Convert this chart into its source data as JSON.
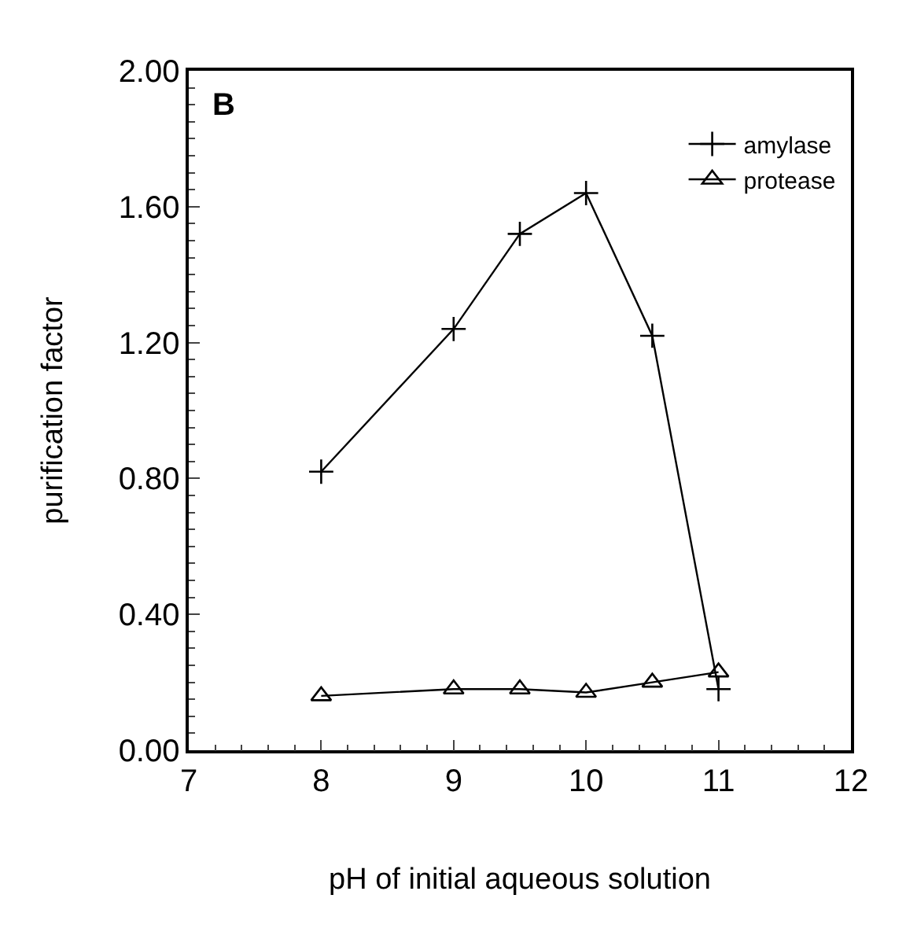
{
  "chart_data": {
    "type": "line",
    "xlabel": "pH of initial aqueous solution",
    "ylabel": "purification factor",
    "annotations": [
      "B"
    ],
    "x": [
      8,
      9,
      9.5,
      10,
      10.5,
      11
    ],
    "series": [
      {
        "name": "amylase",
        "color": "#000000",
        "marker": "cross",
        "values": [
          0.82,
          1.24,
          1.52,
          1.64,
          1.22,
          0.18
        ]
      },
      {
        "name": "protease",
        "color": "#000000",
        "marker": "triangle",
        "values": [
          0.16,
          0.18,
          0.18,
          0.17,
          0.2,
          0.23
        ]
      }
    ],
    "xlim": [
      7,
      12
    ],
    "xticks": [
      7,
      8,
      9,
      10,
      11,
      12
    ],
    "ylim": [
      0,
      2
    ],
    "yticks": [
      {
        "value": 0,
        "label": "0.00"
      },
      {
        "value": 0.4,
        "label": "0.40"
      },
      {
        "value": 0.8,
        "label": "0.80"
      },
      {
        "value": 1.2,
        "label": "1.20"
      },
      {
        "value": 1.6,
        "label": "1.60"
      },
      {
        "value": 2,
        "label": "2.00"
      }
    ],
    "grid": false,
    "legend": "top right",
    "line_style": "solid"
  }
}
